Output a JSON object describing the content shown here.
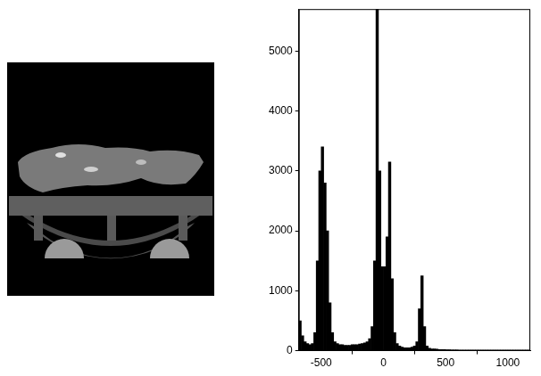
{
  "chart_data": {
    "type": "histogram",
    "bins": [
      -680,
      -660,
      -640,
      -620,
      -600,
      -580,
      -560,
      -540,
      -520,
      -500,
      -480,
      -460,
      -440,
      -420,
      -400,
      -380,
      -360,
      -340,
      -320,
      -300,
      -280,
      -260,
      -240,
      -220,
      -200,
      -180,
      -160,
      -140,
      -120,
      -100,
      -80,
      -60,
      -40,
      -20,
      0,
      20,
      40,
      60,
      80,
      100,
      120,
      140,
      160,
      180,
      200,
      220,
      240,
      260,
      280,
      300,
      320,
      340,
      360,
      380,
      400,
      420,
      440,
      460,
      480,
      500,
      520,
      540,
      560,
      580,
      600,
      620,
      640,
      660,
      680,
      700,
      720,
      740,
      760,
      780,
      800,
      820,
      840,
      860,
      880,
      900,
      920,
      940,
      960,
      980,
      1000,
      1020,
      1040,
      1060,
      1080,
      1100,
      1120,
      1140,
      1160,
      1180
    ],
    "counts": [
      500,
      250,
      150,
      120,
      100,
      120,
      300,
      1500,
      3000,
      3400,
      2800,
      2000,
      800,
      300,
      150,
      120,
      100,
      100,
      90,
      90,
      90,
      100,
      100,
      100,
      110,
      120,
      130,
      150,
      200,
      400,
      1500,
      5700,
      3000,
      1400,
      1400,
      1900,
      3150,
      1200,
      300,
      120,
      80,
      60,
      50,
      50,
      50,
      60,
      80,
      150,
      700,
      1250,
      400,
      80,
      40,
      30,
      30,
      25,
      20,
      20,
      20,
      15,
      15,
      10,
      10,
      10,
      8,
      5,
      5,
      5,
      4,
      4,
      4,
      3,
      3,
      3,
      3,
      2,
      2,
      2,
      2,
      2,
      2,
      1,
      1,
      1,
      1,
      1,
      1,
      1,
      1,
      1,
      1,
      1,
      1
    ],
    "xlim": [
      -680,
      1180
    ],
    "xticks": [
      -500,
      0,
      500,
      1000
    ],
    "ylim": [
      0,
      5700
    ],
    "yticks": [
      0,
      1000,
      2000,
      3000,
      4000,
      5000
    ],
    "color": "#000000",
    "grid": false
  }
}
